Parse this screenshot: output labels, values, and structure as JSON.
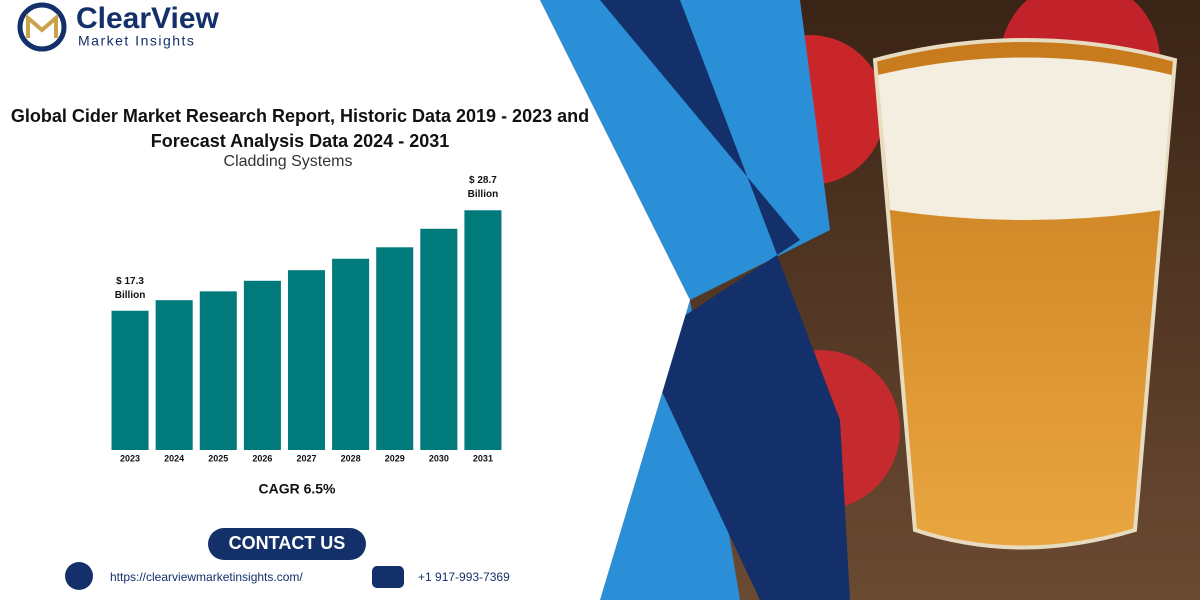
{
  "brand": {
    "name": "ClearView",
    "tagline": "Market Insights"
  },
  "chart_data": {
    "type": "bar",
    "title": "Global Cider Market Research Report, Historic Data 2019 - 2023 and Forecast Analysis Data 2024 - 2031",
    "subtitle": "Cladding Systems",
    "categories": [
      "2023",
      "2024",
      "2025",
      "2026",
      "2027",
      "2028",
      "2029",
      "2030",
      "2031"
    ],
    "values": [
      17.3,
      18.5,
      19.5,
      20.7,
      21.9,
      23.2,
      24.5,
      26.6,
      28.7
    ],
    "value_labels": [
      "$ 17.3 Billion",
      null,
      null,
      null,
      null,
      null,
      null,
      null,
      "$ 28.7 Billion"
    ],
    "color": "#007a7a",
    "ylim": [
      1.5,
      31
    ],
    "annotation": "CAGR 6.5%"
  },
  "contact": {
    "button": "CONTACT US",
    "website": "https://clearviewmarketinsights.com/",
    "phone": "+1 917-993-7369"
  }
}
